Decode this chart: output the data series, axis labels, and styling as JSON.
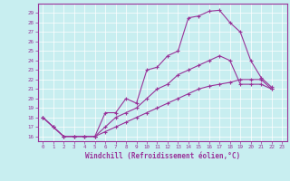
{
  "xlabel": "Windchill (Refroidissement éolien,°C)",
  "background_color": "#c8eef0",
  "line_color": "#993399",
  "xlim": [
    -0.5,
    23.5
  ],
  "ylim": [
    15.5,
    30.0
  ],
  "xticks": [
    0,
    1,
    2,
    3,
    4,
    5,
    6,
    7,
    8,
    9,
    10,
    11,
    12,
    13,
    14,
    15,
    16,
    17,
    18,
    19,
    20,
    21,
    22,
    23
  ],
  "yticks": [
    16,
    17,
    18,
    19,
    20,
    21,
    22,
    23,
    24,
    25,
    26,
    27,
    28,
    29
  ],
  "line1_x": [
    0,
    1,
    2,
    3,
    4,
    5,
    6,
    7,
    8,
    9,
    10,
    11,
    12,
    13,
    14,
    15,
    16,
    17,
    18,
    19,
    20,
    21,
    22
  ],
  "line1_y": [
    18.0,
    17.0,
    16.0,
    16.0,
    16.0,
    16.0,
    18.5,
    18.5,
    20.0,
    19.5,
    23.0,
    23.3,
    24.5,
    25.0,
    28.5,
    28.7,
    29.2,
    29.3,
    28.0,
    27.0,
    24.0,
    22.2,
    21.2
  ],
  "line2_x": [
    0,
    1,
    2,
    3,
    4,
    5,
    6,
    7,
    8,
    9,
    10,
    11,
    12,
    13,
    14,
    15,
    16,
    17,
    18,
    19,
    20,
    21,
    22
  ],
  "line2_y": [
    18.0,
    17.0,
    16.0,
    16.0,
    16.0,
    16.0,
    17.0,
    18.0,
    18.5,
    19.0,
    20.0,
    21.0,
    21.5,
    22.5,
    23.0,
    23.5,
    24.0,
    24.5,
    24.0,
    21.5,
    21.5,
    21.5,
    21.0
  ],
  "line3_x": [
    0,
    1,
    2,
    3,
    4,
    5,
    6,
    7,
    8,
    9,
    10,
    11,
    12,
    13,
    14,
    15,
    16,
    17,
    18,
    19,
    20,
    21,
    22
  ],
  "line3_y": [
    18.0,
    17.0,
    16.0,
    16.0,
    16.0,
    16.0,
    16.5,
    17.0,
    17.5,
    18.0,
    18.5,
    19.0,
    19.5,
    20.0,
    20.5,
    21.0,
    21.3,
    21.5,
    21.7,
    22.0,
    22.0,
    22.0,
    21.0
  ]
}
